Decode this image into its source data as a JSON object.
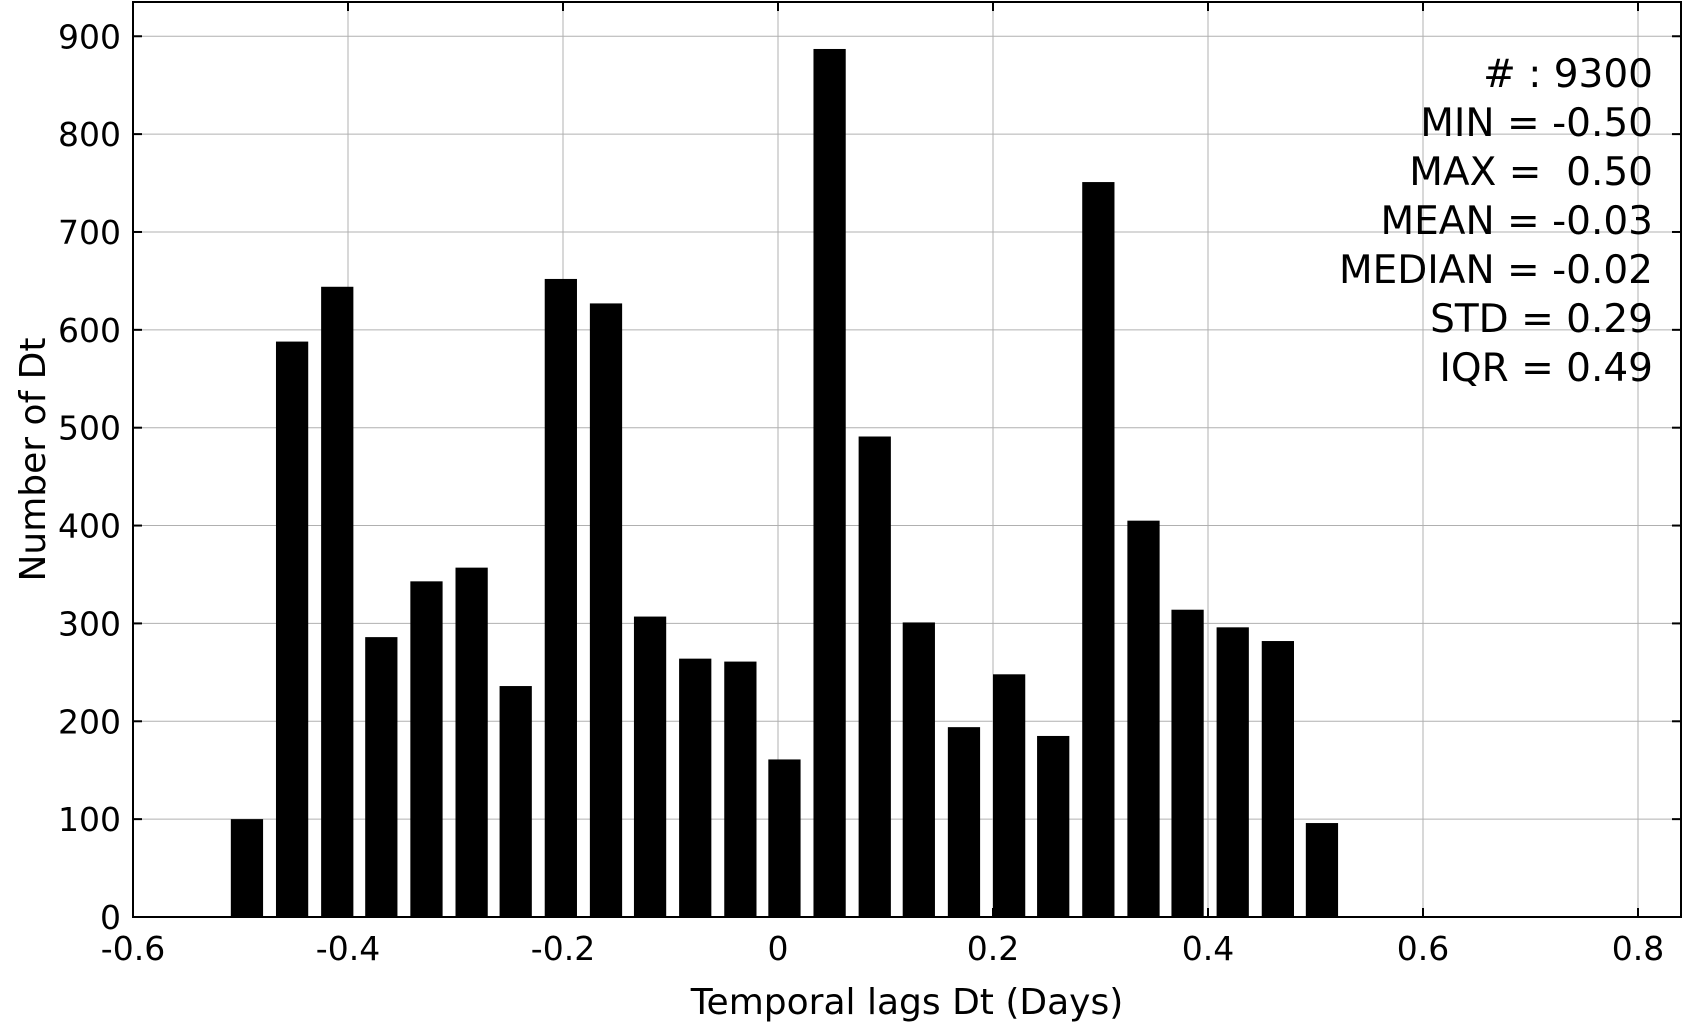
{
  "chart_data": {
    "type": "bar",
    "title": "",
    "xlabel": "Temporal lags Dt (Days)",
    "ylabel": "Number of Dt",
    "xlim": [
      -0.6,
      0.84
    ],
    "ylim": [
      0,
      935
    ],
    "grid": true,
    "bar_color": "#000000",
    "grid_color": "#b0b0b0",
    "bar_width": 0.03,
    "x": [
      -0.494,
      -0.452,
      -0.41,
      -0.369,
      -0.327,
      -0.285,
      -0.244,
      -0.202,
      -0.16,
      -0.119,
      -0.077,
      -0.035,
      0.006,
      0.048,
      0.09,
      0.131,
      0.173,
      0.215,
      0.256,
      0.298,
      0.34,
      0.381,
      0.423,
      0.465,
      0.506
    ],
    "values": [
      100,
      588,
      644,
      286,
      343,
      357,
      236,
      652,
      627,
      307,
      264,
      261,
      161,
      887,
      491,
      301,
      194,
      248,
      185,
      751,
      405,
      314,
      296,
      282,
      96
    ],
    "xticks": [
      -0.6,
      -0.4,
      -0.2,
      0,
      0.2,
      0.4,
      0.6,
      0.8
    ],
    "xtick_labels": [
      "-0.6",
      "-0.4",
      "-0.2",
      "0",
      "0.2",
      "0.4",
      "0.6",
      "0.8"
    ],
    "yticks": [
      0,
      100,
      200,
      300,
      400,
      500,
      600,
      700,
      800,
      900
    ],
    "ytick_labels": [
      "0",
      "100",
      "200",
      "300",
      "400",
      "500",
      "600",
      "700",
      "800",
      "900"
    ],
    "annotations": [
      "# : 9300",
      "MIN = -0.50",
      "MAX =  0.50",
      "MEAN = -0.03",
      "MEDIAN = -0.02",
      "STD = 0.29",
      "IQR = 0.49"
    ],
    "annotation_placement": "top-right"
  }
}
